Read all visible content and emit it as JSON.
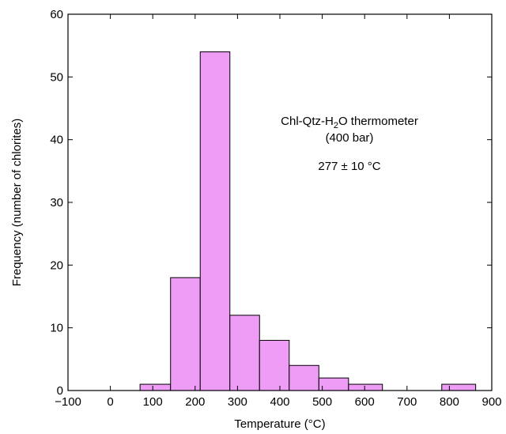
{
  "chart_data": {
    "type": "bar",
    "title": "",
    "xlabel": "Temperature (°C)",
    "ylabel": "Frequency (number of chlorites)",
    "xlim": [
      -100,
      900
    ],
    "ylim": [
      0,
      60
    ],
    "xticks": [
      "−100",
      "0",
      "100",
      "200",
      "300",
      "400",
      "500",
      "600",
      "700",
      "800",
      "900"
    ],
    "yticks": [
      "0",
      "10",
      "20",
      "30",
      "40",
      "50",
      "60"
    ],
    "grid": false,
    "bar_color": "#ee9cf5",
    "bins": [
      {
        "from": 70,
        "to": 142,
        "value": 1
      },
      {
        "from": 142,
        "to": 212,
        "value": 18
      },
      {
        "from": 212,
        "to": 282,
        "value": 54
      },
      {
        "from": 282,
        "to": 352,
        "value": 12
      },
      {
        "from": 352,
        "to": 422,
        "value": 8
      },
      {
        "from": 422,
        "to": 492,
        "value": 4
      },
      {
        "from": 492,
        "to": 562,
        "value": 2
      },
      {
        "from": 562,
        "to": 642,
        "value": 1
      },
      {
        "from": 782,
        "to": 862,
        "value": 1
      }
    ],
    "annotations": {
      "line1_prefix": "Chl-Qtz-H",
      "line1_sub": "2",
      "line1_suffix": "O thermometer",
      "line2": "(400 bar)",
      "line3": "277 ± 10 °C"
    }
  }
}
